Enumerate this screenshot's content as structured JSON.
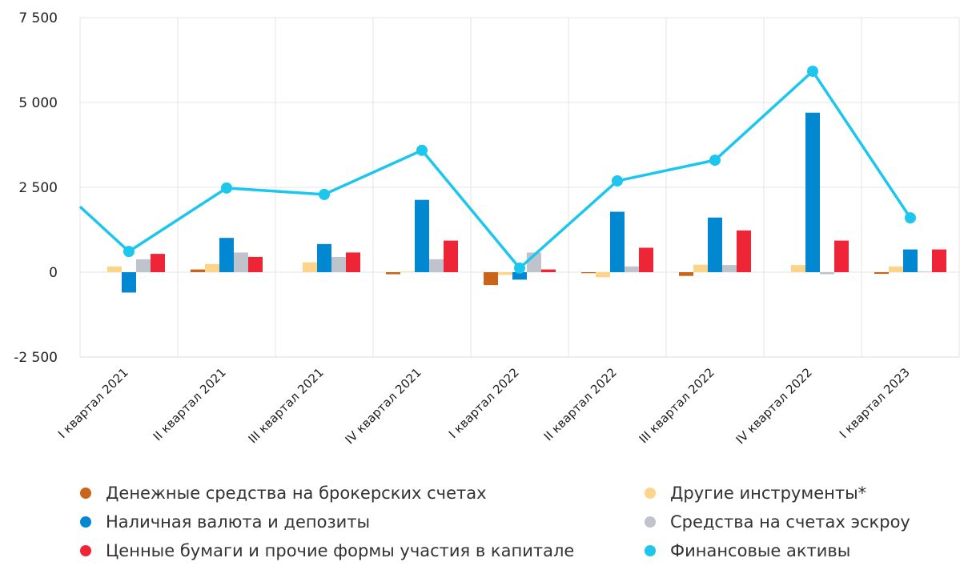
{
  "chart_data": {
    "type": "bar+line",
    "categories": [
      "I квартал 2021",
      "II квартал 2021",
      "III квартал 2021",
      "IV квартал 2021",
      "I квартал 2022",
      "II квартал 2022",
      "III квартал 2022",
      "IV квартал 2022",
      "I квартал 2023"
    ],
    "yticks": [
      "7 500",
      "5 000",
      "2 500",
      "0",
      "-2 500"
    ],
    "ytick_values": [
      7500,
      5000,
      2500,
      0,
      -2500
    ],
    "ylim": [
      -2500,
      7500
    ],
    "grid": true,
    "legend_position": "bottom",
    "series": [
      {
        "name": "Денежные средства на брокерских счетах",
        "kind": "bar",
        "color": "#c8651b",
        "values": [
          0,
          80,
          0,
          -60,
          -380,
          -30,
          -110,
          0,
          -50
        ]
      },
      {
        "name": "Другие инструменты*",
        "kind": "bar",
        "color": "#fdd58a",
        "values": [
          170,
          240,
          290,
          20,
          -80,
          -150,
          220,
          210,
          170
        ]
      },
      {
        "name": "Наличная валюта и депозиты",
        "kind": "bar",
        "color": "#0288d1",
        "values": [
          -600,
          1010,
          830,
          2130,
          -220,
          1780,
          1610,
          4700,
          670
        ]
      },
      {
        "name": "Средства на счетах эскроу",
        "kind": "bar",
        "color": "#bfc3cc",
        "values": [
          380,
          580,
          450,
          380,
          580,
          170,
          210,
          -60,
          20
        ]
      },
      {
        "name": "Ценные бумаги и прочие формы участия в капитале",
        "kind": "bar",
        "color": "#ee2536",
        "values": [
          540,
          450,
          580,
          930,
          80,
          720,
          1230,
          930,
          670
        ]
      },
      {
        "name": "Финансовые активы",
        "kind": "line",
        "color": "#1cc6ec",
        "values": [
          610,
          2480,
          2290,
          3590,
          120,
          2690,
          3300,
          5920,
          1600
        ],
        "left_edge_value": 1930
      }
    ]
  }
}
